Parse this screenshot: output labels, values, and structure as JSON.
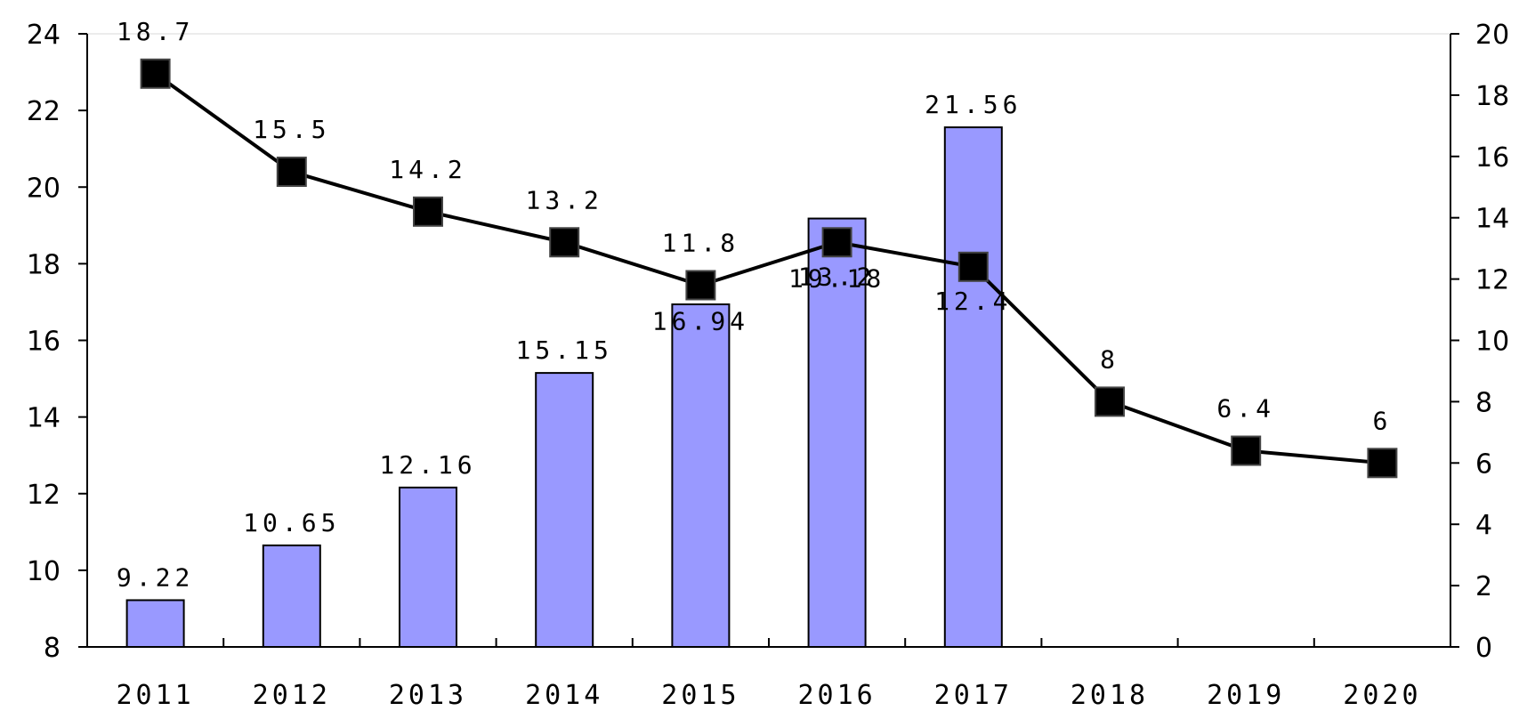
{
  "chart_data": {
    "type": "bar+line",
    "categories": [
      "2011",
      "2012",
      "2013",
      "2014",
      "2015",
      "2016",
      "2017",
      "2018",
      "2019",
      "2020"
    ],
    "y_left": {
      "ylim": [
        8,
        24
      ],
      "ticks": [
        "8",
        "10",
        "12",
        "14",
        "16",
        "18",
        "20",
        "22",
        "24"
      ]
    },
    "y_right": {
      "ylim": [
        0,
        20
      ],
      "ticks": [
        "0",
        "2",
        "4",
        "6",
        "8",
        "10",
        "12",
        "14",
        "16",
        "18",
        "20"
      ]
    },
    "series": [
      {
        "type": "bar",
        "axis": "left",
        "color": "#9999ff",
        "values": [
          9.22,
          10.65,
          12.16,
          15.15,
          16.94,
          19.18,
          21.56,
          null,
          null,
          null
        ],
        "labels": [
          "9.22",
          "10.65",
          "12.16",
          "15.15",
          "16.94",
          "19.18",
          "21.56",
          "",
          "",
          ""
        ]
      },
      {
        "type": "line",
        "axis": "right",
        "color": "#000000",
        "marker": "square",
        "values": [
          18.7,
          15.5,
          14.2,
          13.2,
          11.8,
          13.2,
          12.4,
          8,
          6.4,
          6
        ],
        "labels": [
          "18.7",
          "15.5",
          "14.2",
          "13.2",
          "11.8",
          "13.2",
          "12.4",
          "8",
          "6.4",
          "6"
        ]
      }
    ],
    "grid": false,
    "legend": "none"
  }
}
